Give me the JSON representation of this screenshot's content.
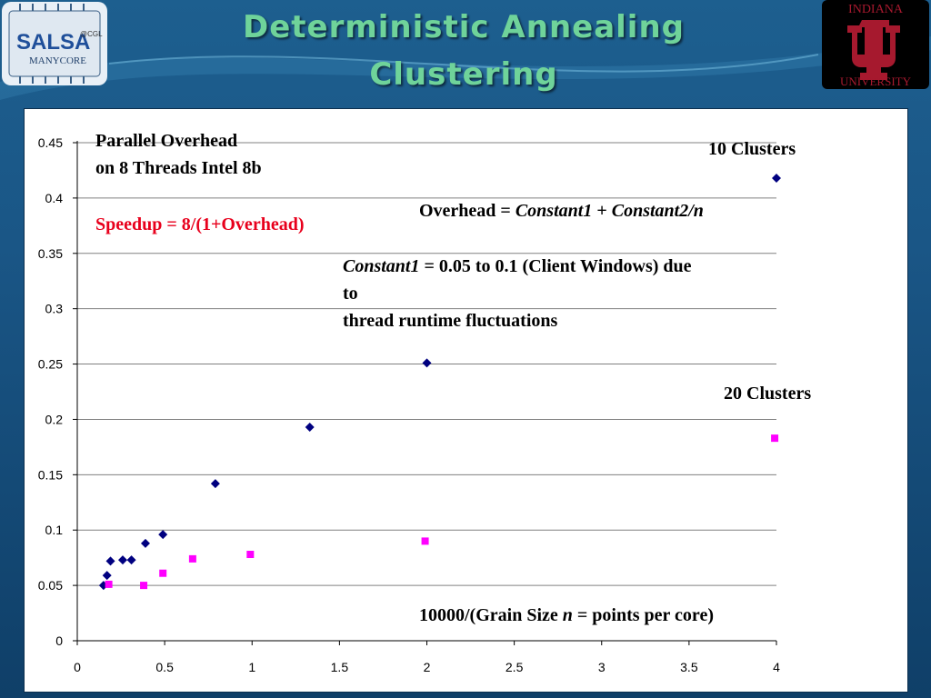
{
  "slide": {
    "title_line1": "Deterministic Annealing",
    "title_line2": "Clustering",
    "logo_left_text": "SALSA",
    "logo_left_mark": "@CGL",
    "logo_left_sub": "MANYCORE",
    "logo_right_top": "INDIANA",
    "logo_right_bottom": "UNIVERSITY"
  },
  "annotations": {
    "heading_line1": "Parallel Overhead",
    "heading_line2": "on 8 Threads Intel 8b",
    "speedup": "Speedup = 8/(1+Overhead)",
    "overhead_prefix": "Overhead = ",
    "overhead_c1": "Constant1",
    "overhead_plus": " + ",
    "overhead_c2": "Constant2/n",
    "const1_italic": "Constant1",
    "const1_rest": " = 0.05 to 0.1 (Client Windows) due",
    "const1_line2": "to",
    "const1_line3": "thread runtime fluctuations",
    "label_10": "10 Clusters",
    "label_20": "20 Clusters",
    "xlabel_prefix": "10000/(Grain Size ",
    "xlabel_n": "n",
    "xlabel_suffix": " = points per core)"
  },
  "colors": {
    "series_10": "#000080",
    "series_20": "#ff00ff",
    "speedup_text": "#e8001c",
    "title": "#6fd39a",
    "iu_crimson": "#a6192e"
  },
  "chart_data": {
    "type": "scatter",
    "xlim": [
      0,
      4
    ],
    "ylim": [
      0,
      0.45
    ],
    "x_ticks": [
      "0",
      "0.5",
      "1",
      "1.5",
      "2",
      "2.5",
      "3",
      "3.5",
      "4"
    ],
    "y_ticks": [
      "0",
      "0.05",
      "0.1",
      "0.15",
      "0.2",
      "0.25",
      "0.3",
      "0.35",
      "0.4",
      "0.45"
    ],
    "grid": "horizontal",
    "series": [
      {
        "marker": "diamond",
        "color": "#000080",
        "points": [
          {
            "x": 0.15,
            "y": 0.05
          },
          {
            "x": 0.17,
            "y": 0.059
          },
          {
            "x": 0.19,
            "y": 0.072
          },
          {
            "x": 0.26,
            "y": 0.073
          },
          {
            "x": 0.31,
            "y": 0.073
          },
          {
            "x": 0.39,
            "y": 0.088
          },
          {
            "x": 0.49,
            "y": 0.096
          },
          {
            "x": 0.79,
            "y": 0.142
          },
          {
            "x": 1.33,
            "y": 0.193
          },
          {
            "x": 2.0,
            "y": 0.251
          },
          {
            "x": 4.0,
            "y": 0.418
          }
        ]
      },
      {
        "marker": "square",
        "color": "#ff00ff",
        "points": [
          {
            "x": 0.18,
            "y": 0.051
          },
          {
            "x": 0.38,
            "y": 0.05
          },
          {
            "x": 0.49,
            "y": 0.061
          },
          {
            "x": 0.66,
            "y": 0.074
          },
          {
            "x": 0.99,
            "y": 0.078
          },
          {
            "x": 1.99,
            "y": 0.09
          },
          {
            "x": 3.99,
            "y": 0.183
          }
        ]
      }
    ]
  }
}
